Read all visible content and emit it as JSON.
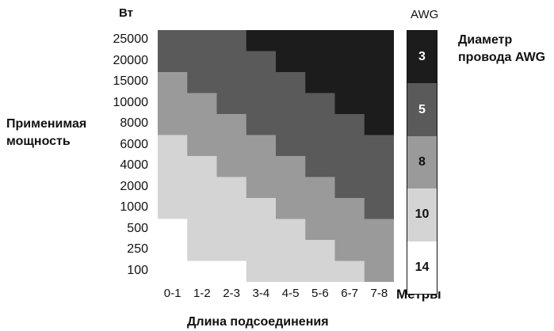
{
  "chart_data": {
    "type": "heatmap",
    "y_unit": "Вт",
    "ylabel": "Применимая мощность",
    "xlabel": "Длина подсоединения",
    "x_unit": "Метры",
    "y_categories": [
      "25000",
      "20000",
      "15000",
      "10000",
      "8000",
      "6000",
      "4000",
      "2000",
      "1000",
      "500",
      "250",
      "100"
    ],
    "x_categories": [
      "0-1",
      "1-2",
      "2-3",
      "3-4",
      "4-5",
      "5-6",
      "6-7",
      "7-8"
    ],
    "legend": {
      "title": "AWG",
      "caption": "Диаметр провода AWG",
      "levels": [
        {
          "awg": "3",
          "color": "#1c1c1c",
          "text_color": "#ffffff"
        },
        {
          "awg": "5",
          "color": "#5a5a5a",
          "text_color": "#ffffff"
        },
        {
          "awg": "8",
          "color": "#9a9a9a",
          "text_color": "#111111"
        },
        {
          "awg": "10",
          "color": "#d4d4d4",
          "text_color": "#111111"
        },
        {
          "awg": "14",
          "color": "#ffffff",
          "text_color": "#111111"
        }
      ]
    },
    "values": [
      [
        "5",
        "5",
        "5",
        "3",
        "3",
        "3",
        "3",
        "3"
      ],
      [
        "5",
        "5",
        "5",
        "5",
        "3",
        "3",
        "3",
        "3"
      ],
      [
        "8",
        "5",
        "5",
        "5",
        "5",
        "3",
        "3",
        "3"
      ],
      [
        "8",
        "8",
        "5",
        "5",
        "5",
        "5",
        "3",
        "3"
      ],
      [
        "8",
        "8",
        "8",
        "5",
        "5",
        "5",
        "5",
        "3"
      ],
      [
        "10",
        "8",
        "8",
        "8",
        "5",
        "5",
        "5",
        "5"
      ],
      [
        "10",
        "10",
        "8",
        "8",
        "8",
        "5",
        "5",
        "5"
      ],
      [
        "10",
        "10",
        "10",
        "8",
        "8",
        "8",
        "5",
        "5"
      ],
      [
        "10",
        "10",
        "10",
        "10",
        "8",
        "8",
        "8",
        "5"
      ],
      [
        "14",
        "10",
        "10",
        "10",
        "10",
        "8",
        "8",
        "8"
      ],
      [
        "14",
        "10",
        "10",
        "10",
        "10",
        "10",
        "8",
        "8"
      ],
      [
        "14",
        "14",
        "14",
        "10",
        "10",
        "10",
        "10",
        "8"
      ]
    ]
  }
}
